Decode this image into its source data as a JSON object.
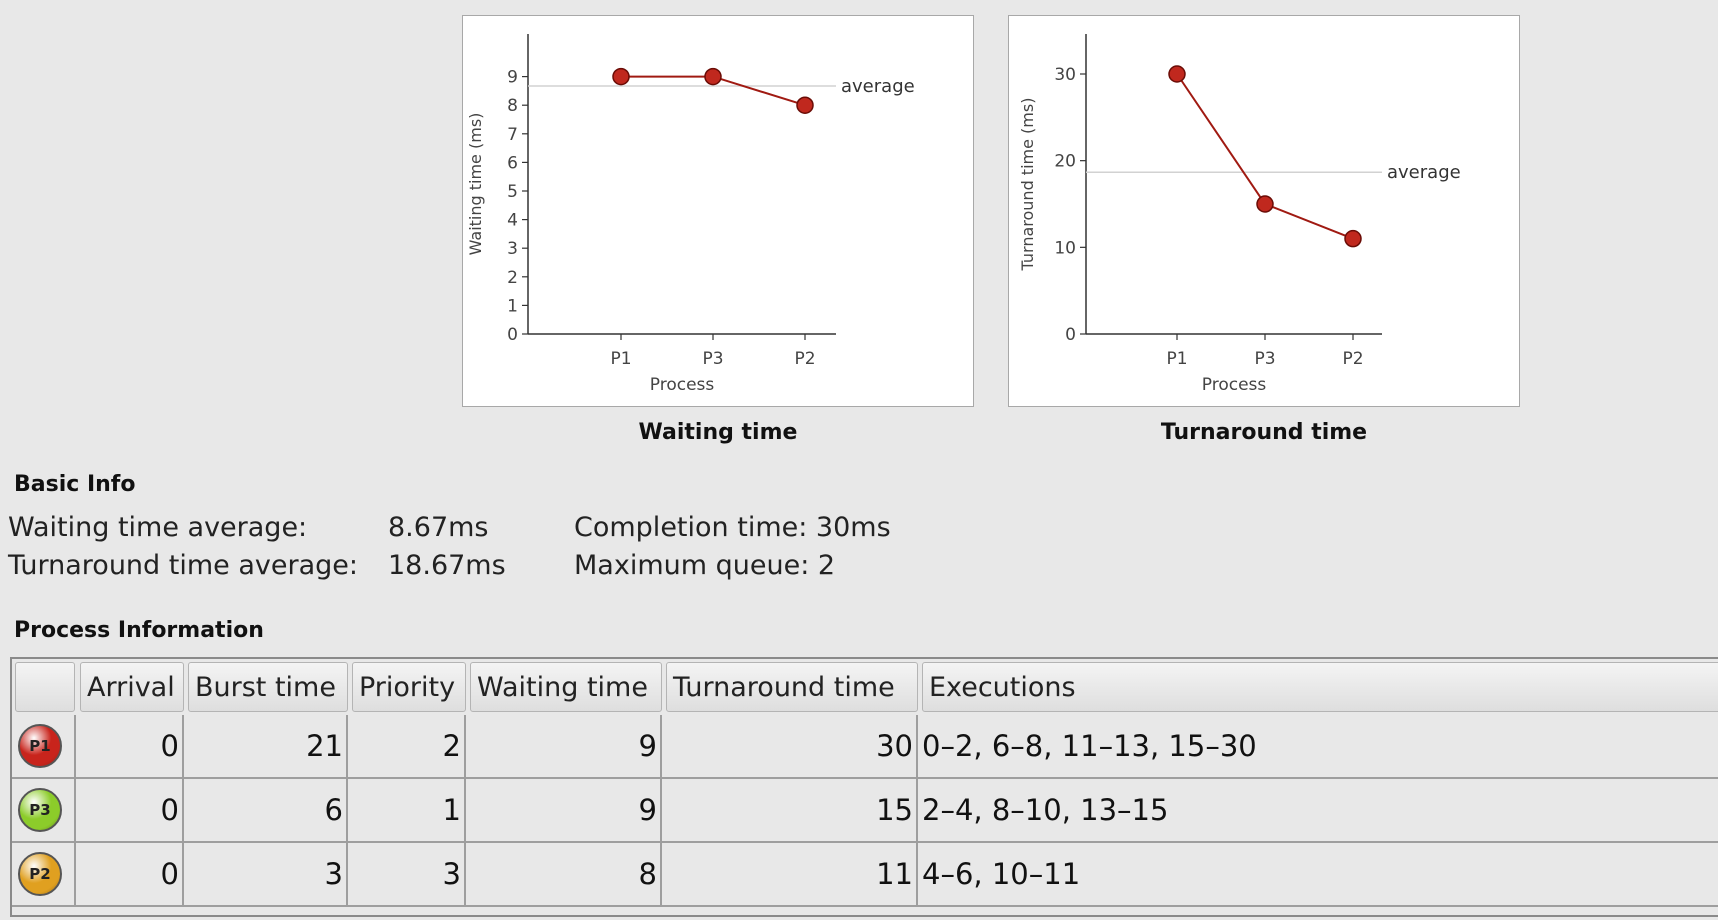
{
  "charts": [
    {
      "caption": "Waiting time",
      "chart_data": {
        "type": "line",
        "categories": [
          "P1",
          "P3",
          "P2"
        ],
        "values": [
          9,
          9,
          8
        ],
        "average": 8.67,
        "average_label": "average",
        "xlabel": "Process",
        "ylabel": "Waiting time (ms)",
        "ylim": [
          0,
          10
        ],
        "yticks": [
          0,
          1,
          2,
          3,
          4,
          5,
          6,
          7,
          8,
          9
        ],
        "grid": false,
        "color": "#a01a12"
      }
    },
    {
      "caption": "Turnaround time",
      "chart_data": {
        "type": "line",
        "categories": [
          "P1",
          "P3",
          "P2"
        ],
        "values": [
          30,
          15,
          11
        ],
        "average": 18.67,
        "average_label": "average",
        "xlabel": "Process",
        "ylabel": "Turnaround time (ms)",
        "ylim": [
          0,
          33
        ],
        "yticks": [
          0,
          10,
          20,
          30
        ],
        "grid": false,
        "color": "#a01a12"
      }
    }
  ],
  "basic_info": {
    "title": "Basic Info",
    "waiting_label": "Waiting time average:",
    "waiting_value": "8.67ms",
    "turnaround_label": "Turnaround time average:",
    "turnaround_value": "18.67ms",
    "completion": "Completion time: 30ms",
    "max_queue": "Maximum queue: 2"
  },
  "process_info": {
    "title": "Process Information",
    "columns": [
      "",
      "Arrival",
      "Burst time",
      "Priority",
      "Waiting time",
      "Turnaround time",
      "Executions"
    ],
    "rows": [
      {
        "process": "P1",
        "icon": "red-ball-icon",
        "color": "#c8241c",
        "arrival": "0",
        "burst": "21",
        "priority": "2",
        "waiting": "9",
        "turnaround": "30",
        "executions": "0–2, 6–8, 11–13, 15–30"
      },
      {
        "process": "P3",
        "icon": "green-ball-icon",
        "color": "#8ccc2a",
        "arrival": "0",
        "burst": "6",
        "priority": "1",
        "waiting": "9",
        "turnaround": "15",
        "executions": "2–4, 8–10, 13–15"
      },
      {
        "process": "P2",
        "icon": "orange-ball-icon",
        "color": "#e0a020",
        "arrival": "0",
        "burst": "3",
        "priority": "3",
        "waiting": "8",
        "turnaround": "11",
        "executions": "4–6, 10–11"
      }
    ]
  }
}
